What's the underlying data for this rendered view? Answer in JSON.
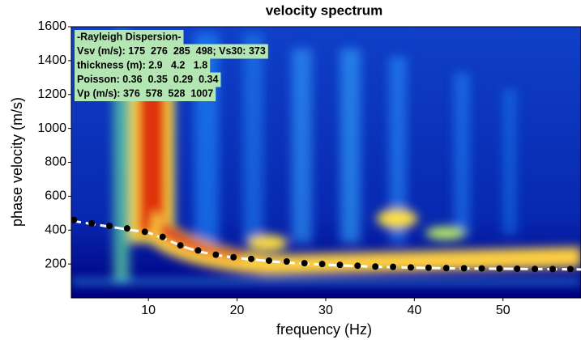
{
  "chart_data": {
    "type": "scatter",
    "title": "velocity spectrum",
    "x_label": "frequency (Hz)",
    "y_label": "phase velocity (m/s)",
    "xlim": [
      1.3,
      58.8
    ],
    "ylim": [
      0,
      1600
    ],
    "xticks": [
      10,
      20,
      30,
      40,
      50
    ],
    "yticks": [
      200,
      400,
      600,
      800,
      1000,
      1200,
      1400,
      1600
    ],
    "annotations": [
      "-Rayleigh Dispersion-",
      "Vsv (m/s): 175  276  285  498; Vs30: 373",
      "thickness (m): 2.9   4.2   1.8",
      "Poisson: 0.36  0.35  0.29  0.34",
      "Vp (m/s): 376  578  528  1007"
    ],
    "annotation_color": "#b4e6b4",
    "series": [
      {
        "style": "dashed-line",
        "color": "#ffffff",
        "x": [
          1.3,
          5,
          10,
          12,
          14,
          16,
          18,
          20,
          25,
          30,
          35,
          40,
          45,
          50,
          58.8
        ],
        "values": [
          455,
          425,
          385,
          345,
          300,
          270,
          250,
          235,
          210,
          195,
          185,
          178,
          174,
          172,
          168
        ]
      },
      {
        "style": "dots",
        "color": "#000000",
        "x": [
          1.6,
          3.6,
          5.6,
          7.6,
          9.6,
          11.6,
          13.6,
          15.6,
          17.6,
          19.6,
          21.6,
          23.6,
          25.6,
          27.6,
          29.6,
          31.6,
          33.6,
          35.6,
          37.6,
          39.6,
          41.6,
          43.6,
          45.6,
          47.6,
          49.6,
          51.6,
          53.6,
          55.6,
          57.6
        ],
        "values": [
          460,
          440,
          425,
          410,
          390,
          360,
          310,
          280,
          255,
          240,
          230,
          220,
          215,
          205,
          200,
          195,
          190,
          185,
          183,
          180,
          178,
          176,
          175,
          174,
          173,
          172,
          171,
          170,
          170
        ]
      }
    ]
  }
}
